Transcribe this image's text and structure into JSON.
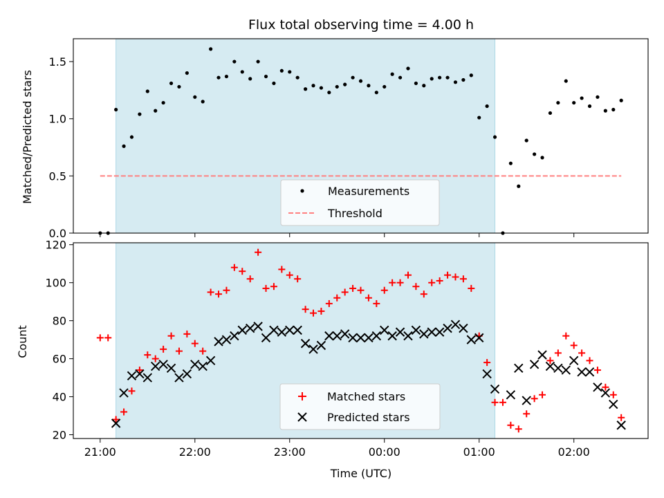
{
  "chart_data": [
    {
      "type": "scatter",
      "title": "Flux total observing time = 4.00 h",
      "xlabel": "",
      "ylabel": "Matched/Predicted stars",
      "ylim": [
        0,
        1.7
      ],
      "yticks": [
        "0.0",
        "0.5",
        "1.0",
        "1.5"
      ],
      "xlim": [
        "20:43",
        "02:47"
      ],
      "x_tick_hours": [
        21,
        22,
        23,
        0,
        1,
        2
      ],
      "x_tick_labels": [
        "21:00",
        "22:00",
        "23:00",
        "00:00",
        "01:00",
        "02:00"
      ],
      "shaded_interval": [
        "21:10",
        "01:10"
      ],
      "shade_color": "#add8e6",
      "legend_position": "lower-center",
      "series": [
        {
          "name": "Measurements",
          "color": "#000000",
          "marker": "dot",
          "x": [
            "21:00",
            "21:05",
            "21:10",
            "21:15",
            "21:20",
            "21:25",
            "21:30",
            "21:35",
            "21:40",
            "21:45",
            "21:50",
            "21:55",
            "22:00",
            "22:05",
            "22:10",
            "22:15",
            "22:20",
            "22:25",
            "22:30",
            "22:35",
            "22:40",
            "22:45",
            "22:50",
            "22:55",
            "23:00",
            "23:05",
            "23:10",
            "23:15",
            "23:20",
            "23:25",
            "23:30",
            "23:35",
            "23:40",
            "23:45",
            "23:50",
            "23:55",
            "00:00",
            "00:05",
            "00:10",
            "00:15",
            "00:20",
            "00:25",
            "00:30",
            "00:35",
            "00:40",
            "00:45",
            "00:50",
            "00:55",
            "01:00",
            "01:05",
            "01:10",
            "01:15",
            "01:20",
            "01:25",
            "01:30",
            "01:35",
            "01:40",
            "01:45",
            "01:50",
            "01:55",
            "02:00",
            "02:05",
            "02:10",
            "02:15",
            "02:20",
            "02:25",
            "02:30"
          ],
          "y": [
            0.0,
            0.0,
            1.08,
            0.76,
            0.84,
            1.04,
            1.24,
            1.07,
            1.14,
            1.31,
            1.28,
            1.4,
            1.19,
            1.15,
            1.61,
            1.36,
            1.37,
            1.5,
            1.41,
            1.35,
            1.5,
            1.37,
            1.31,
            1.42,
            1.41,
            1.36,
            1.26,
            1.29,
            1.27,
            1.23,
            1.28,
            1.3,
            1.36,
            1.33,
            1.29,
            1.23,
            1.28,
            1.39,
            1.36,
            1.44,
            1.31,
            1.29,
            1.35,
            1.36,
            1.36,
            1.32,
            1.34,
            1.38,
            1.01,
            1.11,
            0.84,
            0.0,
            0.61,
            0.41,
            0.81,
            0.69,
            0.66,
            1.05,
            1.14,
            1.33,
            1.14,
            1.18,
            1.11,
            1.19,
            1.07,
            1.08,
            1.16
          ]
        },
        {
          "name": "Threshold",
          "color": "#ff7f7f",
          "marker": "dashed-line",
          "x": [
            "21:00",
            "02:30"
          ],
          "y": [
            0.5,
            0.5
          ]
        }
      ]
    },
    {
      "type": "scatter",
      "title": "",
      "xlabel": "Time (UTC)",
      "ylabel": "Count",
      "ylim": [
        18,
        121
      ],
      "yticks": [
        "20",
        "40",
        "60",
        "80",
        "100",
        "120"
      ],
      "xlim": [
        "20:43",
        "02:47"
      ],
      "x_tick_hours": [
        21,
        22,
        23,
        0,
        1,
        2
      ],
      "x_tick_labels": [
        "21:00",
        "22:00",
        "23:00",
        "00:00",
        "01:00",
        "02:00"
      ],
      "shaded_interval": [
        "21:10",
        "01:10"
      ],
      "shade_color": "#add8e6",
      "legend_position": "lower-center",
      "series": [
        {
          "name": "Matched stars",
          "color": "#ff0000",
          "marker": "plus",
          "x": [
            "21:00",
            "21:05",
            "21:10",
            "21:15",
            "21:20",
            "21:25",
            "21:30",
            "21:35",
            "21:40",
            "21:45",
            "21:50",
            "21:55",
            "22:00",
            "22:05",
            "22:10",
            "22:15",
            "22:20",
            "22:25",
            "22:30",
            "22:35",
            "22:40",
            "22:45",
            "22:50",
            "22:55",
            "23:00",
            "23:05",
            "23:10",
            "23:15",
            "23:20",
            "23:25",
            "23:30",
            "23:35",
            "23:40",
            "23:45",
            "23:50",
            "23:55",
            "00:00",
            "00:05",
            "00:10",
            "00:15",
            "00:20",
            "00:25",
            "00:30",
            "00:35",
            "00:40",
            "00:45",
            "00:50",
            "00:55",
            "01:00",
            "01:05",
            "01:10",
            "01:15",
            "01:20",
            "01:25",
            "01:30",
            "01:35",
            "01:40",
            "01:45",
            "01:50",
            "01:55",
            "02:00",
            "02:05",
            "02:10",
            "02:15",
            "02:20",
            "02:25",
            "02:30"
          ],
          "y": [
            71,
            71,
            28,
            32,
            43,
            54,
            62,
            60,
            65,
            72,
            64,
            73,
            68,
            64,
            95,
            94,
            96,
            108,
            106,
            102,
            116,
            97,
            98,
            107,
            104,
            102,
            86,
            84,
            85,
            89,
            92,
            95,
            97,
            96,
            92,
            89,
            96,
            100,
            100,
            104,
            98,
            94,
            100,
            101,
            104,
            103,
            102,
            97,
            72,
            58,
            37,
            37,
            25,
            23,
            31,
            39,
            41,
            59,
            63,
            72,
            67,
            63,
            59,
            54,
            45,
            41,
            29
          ]
        },
        {
          "name": "Predicted stars",
          "color": "#000000",
          "marker": "x",
          "x": [
            "21:10",
            "21:15",
            "21:20",
            "21:25",
            "21:30",
            "21:35",
            "21:40",
            "21:45",
            "21:50",
            "21:55",
            "22:00",
            "22:05",
            "22:10",
            "22:15",
            "22:20",
            "22:25",
            "22:30",
            "22:35",
            "22:40",
            "22:45",
            "22:50",
            "22:55",
            "23:00",
            "23:05",
            "23:10",
            "23:15",
            "23:20",
            "23:25",
            "23:30",
            "23:35",
            "23:40",
            "23:45",
            "23:50",
            "23:55",
            "00:00",
            "00:05",
            "00:10",
            "00:15",
            "00:20",
            "00:25",
            "00:30",
            "00:35",
            "00:40",
            "00:45",
            "00:50",
            "00:55",
            "01:00",
            "01:05",
            "01:10",
            "01:20",
            "01:25",
            "01:30",
            "01:35",
            "01:40",
            "01:45",
            "01:50",
            "01:55",
            "02:00",
            "02:05",
            "02:10",
            "02:15",
            "02:20",
            "02:25",
            "02:30"
          ],
          "y": [
            26,
            42,
            51,
            52,
            50,
            56,
            57,
            55,
            50,
            52,
            57,
            56,
            59,
            69,
            70,
            72,
            75,
            76,
            77,
            71,
            75,
            74,
            75,
            75,
            68,
            65,
            67,
            72,
            72,
            73,
            71,
            71,
            71,
            72,
            75,
            72,
            74,
            72,
            75,
            73,
            74,
            74,
            76,
            78,
            76,
            70,
            71,
            52,
            44,
            41,
            55,
            38,
            57,
            62,
            56,
            55,
            54,
            59,
            53,
            53,
            45,
            42,
            36,
            25
          ]
        }
      ]
    }
  ]
}
